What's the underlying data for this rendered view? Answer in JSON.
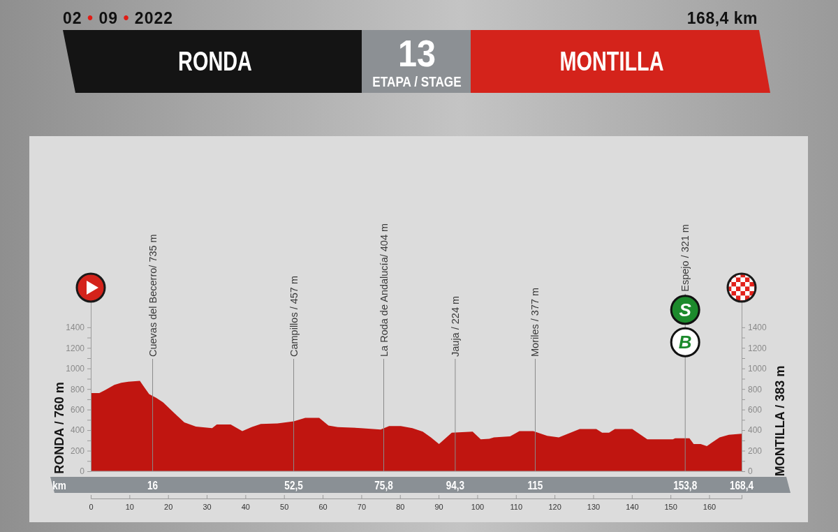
{
  "chart_data": {
    "type": "area",
    "title": "13",
    "subtitle": "ETAPA / STAGE",
    "ylabel": "RONDA / 760 m",
    "y2label": "MONTILLA / 383 m",
    "x2label": "km",
    "annotations": [
      "02 • 09 • 2022",
      "168,4 km",
      "RONDA",
      "MONTILLA",
      {
        "text": "S",
        "x": 153.8,
        "y": 1570
      },
      {
        "text": "B",
        "x": 153.8,
        "y": 1255
      }
    ],
    "x": [
      0,
      2.2,
      3.7,
      6.1,
      7.9,
      9.7,
      12.7,
      13.6,
      15.1,
      16.9,
      18.7,
      21.2,
      24.2,
      27.2,
      31.4,
      32.6,
      36.2,
      39.2,
      41.6,
      44.0,
      48.3,
      52.5,
      55.5,
      59.1,
      61.5,
      63.9,
      69.9,
      75.0,
      77.2,
      80.2,
      83.2,
      85.9,
      88.0,
      90.1,
      93.4,
      98.8,
      100.9,
      103.1,
      104.3,
      108.5,
      110.9,
      114.5,
      118.1,
      121.1,
      126.5,
      130.8,
      132.3,
      134.1,
      135.6,
      140.1,
      144.0,
      150.6,
      151.2,
      154.9,
      156.0,
      157.8,
      159.4,
      162.7,
      165.1,
      168.4
    ],
    "values": [
      760,
      760,
      790,
      840,
      860,
      870,
      880,
      830,
      750,
      715,
      670,
      580,
      475,
      435,
      420,
      455,
      455,
      390,
      430,
      460,
      465,
      485,
      520,
      520,
      445,
      430,
      420,
      405,
      440,
      440,
      420,
      385,
      330,
      265,
      375,
      385,
      310,
      315,
      330,
      340,
      390,
      390,
      345,
      330,
      410,
      410,
      375,
      375,
      410,
      410,
      310,
      310,
      320,
      320,
      265,
      265,
      245,
      330,
      355,
      365
    ],
    "color": "#c01510",
    "xlim": [
      0,
      168.4
    ],
    "xticks": [
      0,
      10,
      20,
      30,
      40,
      50,
      60,
      70,
      80,
      90,
      100,
      110,
      120,
      130,
      140,
      150,
      160
    ],
    "x2lim": [
      0,
      168.4
    ],
    "x2ticks": [
      16,
      {
        "value": 52.5,
        "label": "52,5"
      },
      {
        "value": 75.8,
        "label": "75,8"
      },
      {
        "value": 94.3,
        "label": "94,3"
      },
      115,
      {
        "value": 153.8,
        "label": "153,8"
      },
      {
        "value": 168.4,
        "label": "168,4"
      }
    ],
    "ylim": [
      0,
      1650
    ],
    "yticks": [
      0,
      {
        "value": 100,
        "label": null
      },
      200,
      {
        "value": 300,
        "label": null
      },
      400,
      {
        "value": 500,
        "label": null
      },
      600,
      {
        "value": 700,
        "label": null
      },
      800,
      {
        "value": 900,
        "label": null
      },
      1000,
      {
        "value": 1100,
        "label": null
      },
      1200,
      {
        "value": 1300,
        "label": null
      },
      1400
    ],
    "y2lim": [
      0,
      1650
    ],
    "y2ticks": [
      0,
      {
        "value": 100,
        "label": null
      },
      200,
      {
        "value": 300,
        "label": null
      },
      400,
      {
        "value": 500,
        "label": null
      },
      600,
      {
        "value": 700,
        "label": null
      },
      800,
      {
        "value": 900,
        "label": null
      },
      1000,
      {
        "value": 1100,
        "label": null
      },
      1200,
      {
        "value": 1300,
        "label": null
      },
      1400
    ],
    "ref_lines": [
      {
        "axis": "x",
        "value": 16,
        "label": "Cuevas del Becerro/ 735 m"
      },
      {
        "axis": "x",
        "value": 52.5,
        "label": "Campillos / 457 m"
      },
      {
        "axis": "x",
        "value": 75.8,
        "label": "La Roda de Andalucía/ 404 m"
      },
      {
        "axis": "x",
        "value": 94.3,
        "label": "Jauja / 224 m"
      },
      {
        "axis": "x",
        "value": 115,
        "label": "Moriles / 377 m"
      },
      {
        "axis": "x",
        "value": 153.8,
        "label": "Espejo / 321 m"
      }
    ]
  }
}
